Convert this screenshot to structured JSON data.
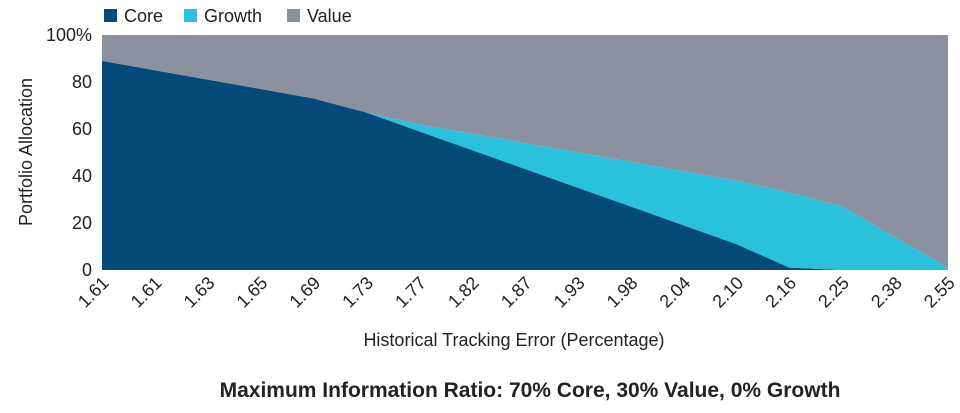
{
  "chart_data": {
    "type": "area",
    "stacked": true,
    "x_categories": [
      "1.61",
      "1.61",
      "1.63",
      "1.65",
      "1.69",
      "1.73",
      "1.77",
      "1.82",
      "1.87",
      "1.93",
      "1.98",
      "2.04",
      "2.10",
      "2.16",
      "2.25",
      "2.38",
      "2.55"
    ],
    "series": [
      {
        "name": "Core",
        "color": "#044a78",
        "values": [
          89,
          85,
          81,
          77,
          73,
          67,
          59,
          51,
          43,
          35,
          27,
          19,
          11,
          1,
          0,
          0,
          0
        ]
      },
      {
        "name": "Growth",
        "color": "#29c1dc",
        "values": [
          0,
          0,
          0,
          0,
          0,
          0,
          3,
          7,
          11,
          15,
          19,
          23,
          27,
          32,
          27,
          14,
          1
        ]
      },
      {
        "name": "Value",
        "color": "#8b919e",
        "values": [
          11,
          15,
          19,
          23,
          27,
          33,
          38,
          42,
          46,
          50,
          54,
          58,
          62,
          67,
          73,
          86,
          99
        ]
      }
    ],
    "ylim": [
      0,
      100
    ],
    "y_ticks": [
      "0",
      "20",
      "40",
      "60",
      "80",
      "100%"
    ],
    "xlabel": "Historical Tracking Error (Percentage)",
    "ylabel": "Portfolio Allocation",
    "legend_position": "top-left",
    "grid": false,
    "note": "Maximum Information Ratio: 70% Core, 30% Value, 0% Growth"
  }
}
